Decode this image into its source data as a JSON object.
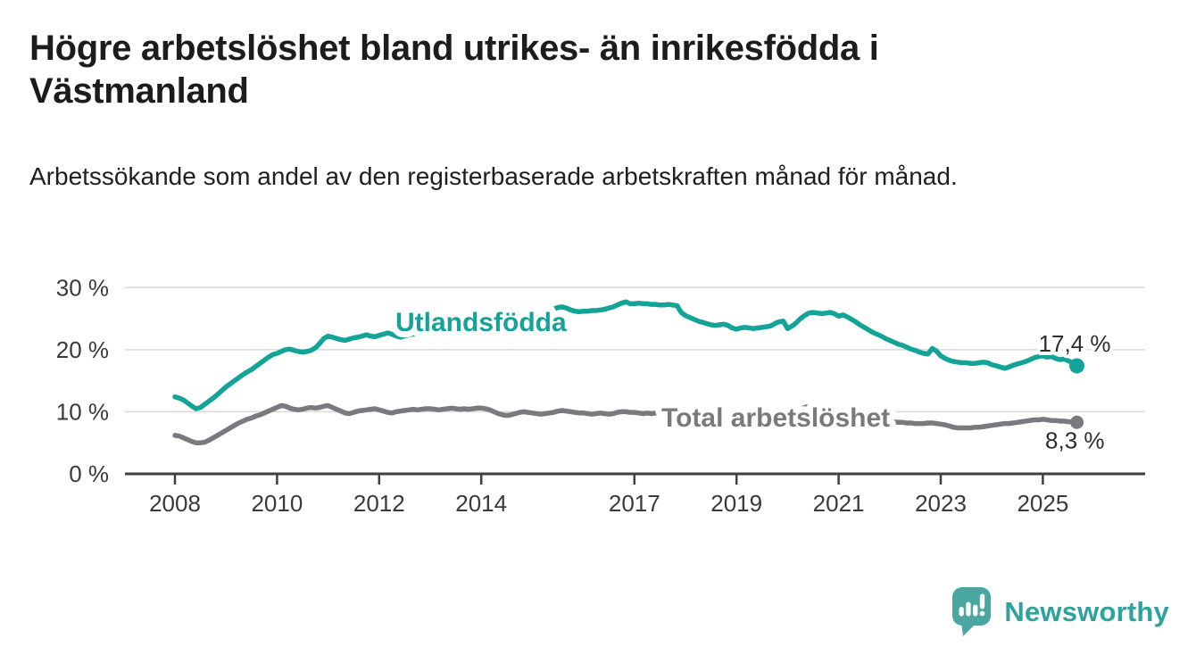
{
  "header": {
    "title": "Högre arbetslöshet bland utrikes- än inrikesfödda i Västmanland",
    "subtitle": "Arbetssökande som andel av den registerbaserade arbetskraften månad för månad."
  },
  "footer": {
    "brand": "Newsworthy"
  },
  "colors": {
    "teal": "#14a397",
    "gray": "#7a797e",
    "grid": "#d9d9d9",
    "axis": "#3f3f3f",
    "axis_text": "#3a3a3a",
    "value_text": "#2d2d2d",
    "logo_icon": "#4aa6a1",
    "logo_text": "#2ea29c"
  },
  "chart_data": {
    "type": "line",
    "title": "Högre arbetslöshet bland utrikes- än inrikesfödda i Västmanland",
    "x_unit": "month",
    "x_start_year": 2008,
    "x_ticks": [
      2008,
      2010,
      2012,
      2014,
      2017,
      2019,
      2021,
      2023,
      2025
    ],
    "y_ticks": [
      0,
      10,
      20,
      30
    ],
    "y_tick_suffix": " %",
    "ylim": [
      0,
      31.5
    ],
    "grid": "horizontal",
    "legend_position": "inline-labels",
    "series": [
      {
        "name": "Utlandsfödda",
        "slug": "utlandsfodda",
        "color": "#14a397",
        "end_label": "17,4 %",
        "end_value": 17.4,
        "values": [
          12.4,
          12.2,
          11.9,
          11.4,
          10.9,
          10.5,
          10.7,
          11.2,
          11.7,
          12.2,
          12.8,
          13.4,
          14.0,
          14.5,
          15.0,
          15.5,
          16.0,
          16.4,
          16.8,
          17.3,
          17.8,
          18.3,
          18.8,
          19.2,
          19.4,
          19.7,
          20.0,
          20.1,
          19.9,
          19.7,
          19.6,
          19.7,
          19.9,
          20.3,
          21.0,
          21.8,
          22.2,
          22.0,
          21.8,
          21.6,
          21.5,
          21.7,
          21.9,
          22.0,
          22.2,
          22.4,
          22.2,
          22.1,
          22.3,
          22.5,
          22.7,
          22.5,
          22.2,
          22.0,
          22.2,
          22.4,
          22.5,
          22.6,
          22.8,
          23.0,
          23.1,
          23.2,
          23.3,
          23.3,
          23.2,
          23.4,
          23.5,
          23.6,
          23.7,
          23.8,
          23.9,
          24.0,
          24.1,
          24.2,
          24.3,
          24.3,
          24.2,
          24.4,
          24.5,
          24.7,
          24.8,
          25.0,
          25.1,
          25.3,
          25.5,
          25.7,
          25.9,
          26.1,
          26.3,
          26.5,
          26.8,
          26.9,
          26.7,
          26.4,
          26.2,
          26.1,
          26.2,
          26.2,
          26.3,
          26.3,
          26.4,
          26.5,
          26.7,
          26.9,
          27.2,
          27.5,
          27.7,
          27.4,
          27.4,
          27.5,
          27.4,
          27.4,
          27.3,
          27.3,
          27.2,
          27.2,
          27.3,
          27.2,
          27.1,
          26.0,
          25.5,
          25.2,
          24.9,
          24.6,
          24.4,
          24.2,
          24.0,
          23.9,
          24.0,
          24.1,
          23.9,
          23.5,
          23.3,
          23.5,
          23.6,
          23.5,
          23.4,
          23.5,
          23.6,
          23.7,
          23.8,
          24.2,
          24.5,
          24.6,
          23.4,
          23.8,
          24.3,
          25.0,
          25.5,
          25.9,
          26.0,
          25.9,
          25.8,
          25.9,
          26.0,
          25.8,
          25.4,
          25.6,
          25.3,
          24.9,
          24.5,
          24.0,
          23.6,
          23.2,
          22.8,
          22.5,
          22.2,
          21.8,
          21.5,
          21.2,
          20.9,
          20.7,
          20.4,
          20.1,
          19.9,
          19.6,
          19.4,
          19.3,
          20.2,
          19.8,
          19.0,
          18.6,
          18.3,
          18.1,
          18.0,
          17.9,
          17.9,
          17.8,
          17.8,
          17.9,
          18.0,
          17.9,
          17.6,
          17.4,
          17.2,
          17.0,
          17.2,
          17.5,
          17.7,
          17.9,
          18.1,
          18.4,
          18.7,
          18.9,
          19.0,
          18.8,
          18.9,
          18.6,
          18.4,
          18.5,
          18.2,
          17.9,
          17.4
        ]
      },
      {
        "name": "Total arbetslöshet",
        "slug": "total-arbetsloshet",
        "color": "#7a797e",
        "end_label": "8,3 %",
        "end_value": 8.3,
        "values": [
          6.2,
          6.1,
          5.8,
          5.5,
          5.2,
          5.0,
          5.0,
          5.1,
          5.4,
          5.8,
          6.2,
          6.6,
          7.0,
          7.4,
          7.8,
          8.2,
          8.5,
          8.8,
          9.0,
          9.3,
          9.5,
          9.8,
          10.1,
          10.4,
          10.7,
          11.0,
          10.9,
          10.6,
          10.4,
          10.3,
          10.4,
          10.6,
          10.7,
          10.6,
          10.7,
          10.9,
          11.0,
          10.7,
          10.4,
          10.1,
          9.8,
          9.7,
          9.9,
          10.1,
          10.2,
          10.3,
          10.4,
          10.5,
          10.3,
          10.1,
          9.9,
          9.8,
          10.0,
          10.1,
          10.2,
          10.3,
          10.4,
          10.3,
          10.4,
          10.5,
          10.5,
          10.4,
          10.3,
          10.4,
          10.5,
          10.6,
          10.5,
          10.4,
          10.5,
          10.4,
          10.5,
          10.6,
          10.6,
          10.5,
          10.3,
          10.0,
          9.7,
          9.5,
          9.4,
          9.5,
          9.7,
          9.9,
          10.0,
          9.9,
          9.8,
          9.7,
          9.6,
          9.7,
          9.8,
          9.9,
          10.1,
          10.2,
          10.1,
          10.0,
          9.9,
          9.8,
          9.8,
          9.7,
          9.6,
          9.7,
          9.8,
          9.7,
          9.6,
          9.7,
          9.9,
          10.0,
          10.0,
          9.9,
          9.9,
          9.8,
          9.7,
          9.8,
          9.7,
          9.8,
          9.9,
          9.8,
          9.6,
          9.5,
          9.4,
          9.4,
          9.3,
          9.2,
          9.1,
          9.0,
          8.9,
          8.9,
          8.8,
          8.8,
          8.9,
          8.9,
          8.8,
          8.8,
          8.8,
          8.9,
          8.9,
          8.8,
          8.8,
          8.9,
          9.0,
          9.0,
          9.1,
          9.2,
          9.3,
          9.3,
          9.4,
          9.5,
          9.9,
          10.4,
          10.7,
          10.9,
          10.8,
          10.7,
          10.6,
          10.5,
          10.4,
          10.3,
          10.2,
          10.1,
          9.9,
          9.7,
          9.5,
          9.3,
          9.1,
          8.9,
          8.8,
          8.7,
          8.6,
          8.5,
          8.4,
          8.4,
          8.3,
          8.3,
          8.2,
          8.2,
          8.1,
          8.1,
          8.1,
          8.2,
          8.2,
          8.1,
          8.0,
          7.9,
          7.7,
          7.5,
          7.4,
          7.4,
          7.4,
          7.4,
          7.5,
          7.5,
          7.6,
          7.7,
          7.8,
          7.9,
          8.0,
          8.1,
          8.1,
          8.2,
          8.3,
          8.4,
          8.5,
          8.6,
          8.7,
          8.7,
          8.8,
          8.7,
          8.6,
          8.6,
          8.5,
          8.5,
          8.4,
          8.4,
          8.3
        ]
      }
    ]
  }
}
